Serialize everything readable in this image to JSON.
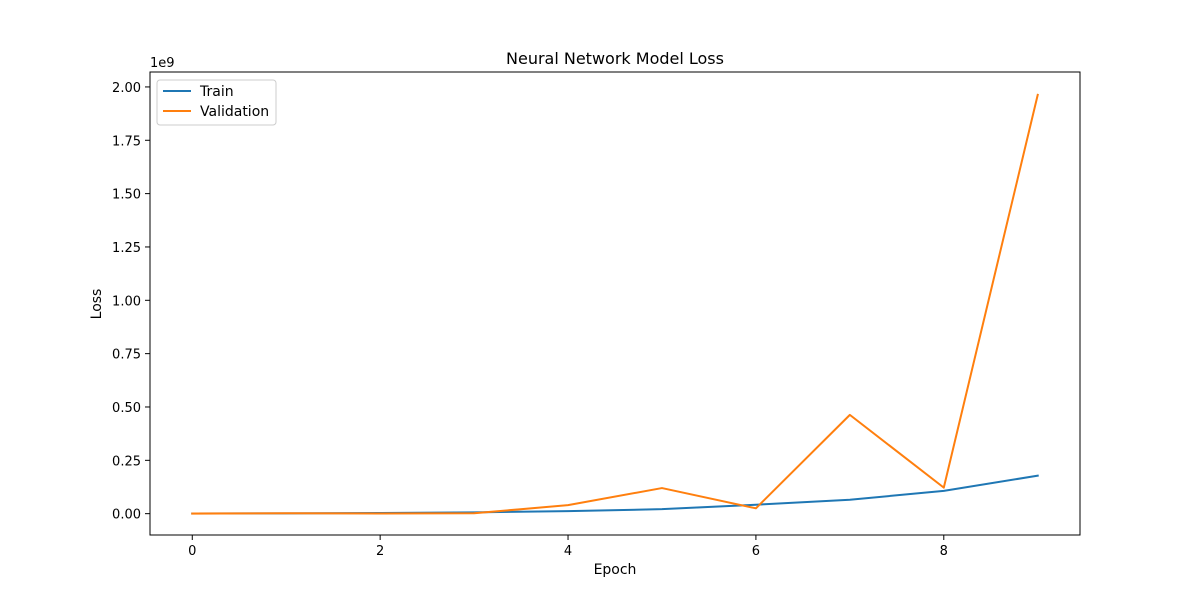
{
  "chart_data": {
    "type": "line",
    "title": "Neural Network Model Loss",
    "xlabel": "Epoch",
    "ylabel": "Loss",
    "y_offset_label": "1e9",
    "y_scale_factor": 1000000000,
    "xlim": [
      -0.45,
      9.45
    ],
    "ylim": [
      -100000000,
      2070000000
    ],
    "xticks": [
      0,
      2,
      4,
      6,
      8
    ],
    "xtick_labels": [
      "0",
      "2",
      "4",
      "6",
      "8"
    ],
    "yticks": [
      0,
      250000000,
      500000000,
      750000000,
      1000000000,
      1250000000,
      1500000000,
      1750000000,
      2000000000
    ],
    "ytick_labels": [
      "0.00",
      "0.25",
      "0.50",
      "0.75",
      "1.00",
      "1.25",
      "1.50",
      "1.75",
      "2.00"
    ],
    "grid": false,
    "legend_position": "top-left",
    "x": [
      0,
      1,
      2,
      3,
      4,
      5,
      6,
      7,
      8,
      9
    ],
    "series": [
      {
        "name": "Train",
        "color": "#1f77b4",
        "values": [
          500000,
          1500000,
          3000000,
          6000000,
          12000000,
          21000000,
          42000000,
          65000000,
          107000000,
          178000000
        ]
      },
      {
        "name": "Validation",
        "color": "#ff7f0e",
        "values": [
          500000,
          2000000,
          1000000,
          2000000,
          40000000,
          120000000,
          25000000,
          463000000,
          122000000,
          1963000000
        ]
      }
    ]
  }
}
